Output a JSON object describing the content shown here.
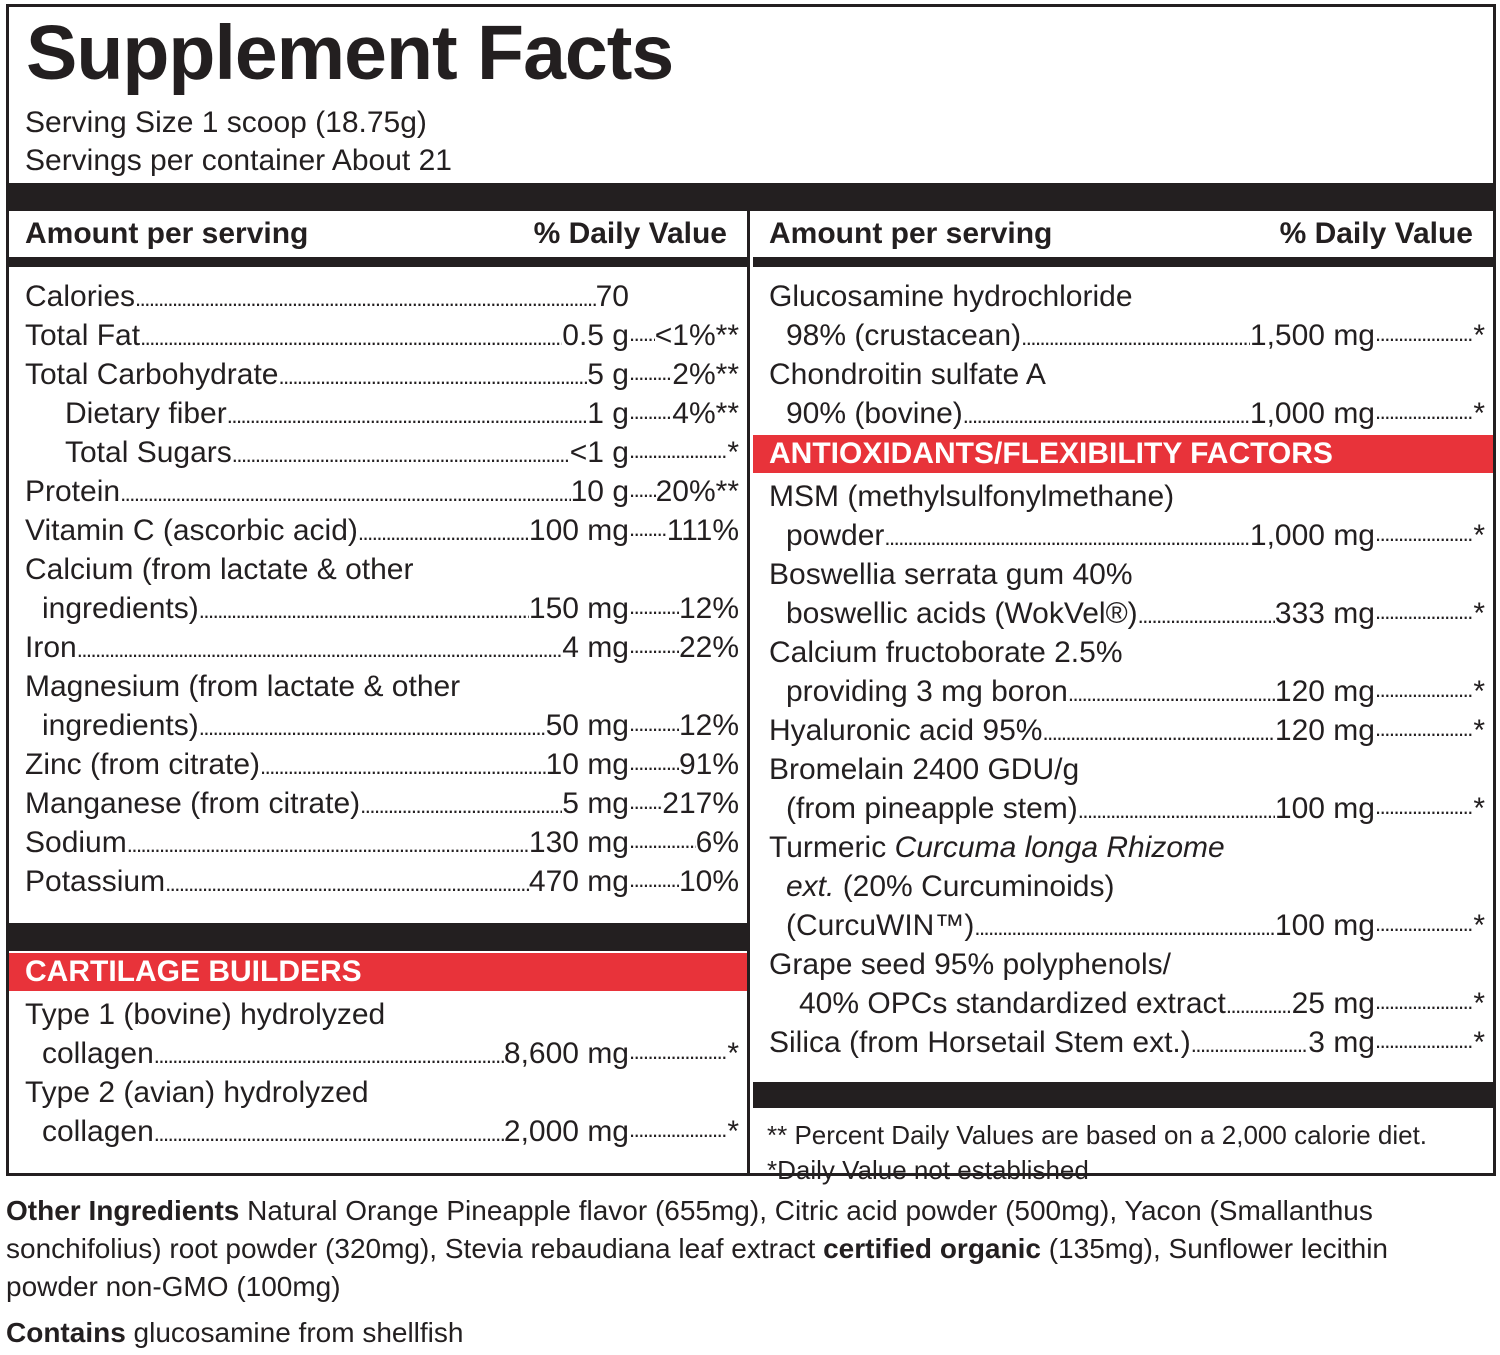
{
  "title": "Supplement Facts",
  "serving_size": "Serving Size 1 scoop (18.75g)",
  "servings_per_container": "Servings per container About 21",
  "header": {
    "amount": "Amount per serving",
    "dv": "% Daily Value"
  },
  "left_rows": [
    {
      "lines": [
        "Calories"
      ],
      "amount": "70",
      "dv": ""
    },
    {
      "lines": [
        "Total Fat"
      ],
      "amount": "0.5 g",
      "dv": "<1%**"
    },
    {
      "lines": [
        "Total Carbohydrate"
      ],
      "amount": "5 g",
      "dv": "2%**"
    },
    {
      "lines": [
        "Dietary fiber"
      ],
      "amount": "1 g",
      "dv": "4%**",
      "indent": 2
    },
    {
      "lines": [
        "Total Sugars"
      ],
      "amount": "<1 g",
      "dv": "*",
      "indent": 2
    },
    {
      "lines": [
        "Protein"
      ],
      "amount": "10 g",
      "dv": "20%**"
    },
    {
      "lines": [
        "Vitamin C (ascorbic acid)"
      ],
      "amount": "100 mg",
      "dv": "111%"
    },
    {
      "lines": [
        "Calcium (from lactate & other",
        "ingredients)"
      ],
      "amount": "150 mg",
      "dv": "12%"
    },
    {
      "lines": [
        "Iron"
      ],
      "amount": "4 mg",
      "dv": "22%"
    },
    {
      "lines": [
        "Magnesium (from lactate & other",
        "ingredients)"
      ],
      "amount": "50 mg",
      "dv": "12%"
    },
    {
      "lines": [
        "Zinc (from citrate)"
      ],
      "amount": "10 mg",
      "dv": "91%"
    },
    {
      "lines": [
        "Manganese (from citrate)"
      ],
      "amount": "5 mg",
      "dv": "217%"
    },
    {
      "lines": [
        "Sodium"
      ],
      "amount": "130 mg",
      "dv": "6%"
    },
    {
      "lines": [
        "Potassium"
      ],
      "amount": "470 mg",
      "dv": "10%"
    }
  ],
  "cartilage": {
    "title": "CARTILAGE BUILDERS",
    "rows": [
      {
        "lines": [
          "Type 1 (bovine) hydrolyzed",
          "collagen"
        ],
        "amount": "8,600 mg",
        "dv": "*"
      },
      {
        "lines": [
          "Type 2 (avian) hydrolyzed",
          "collagen"
        ],
        "amount": "2,000 mg",
        "dv": "*"
      }
    ]
  },
  "right_rows": [
    {
      "lines": [
        "Glucosamine hydrochloride",
        "98% (crustacean)"
      ],
      "amount": "1,500 mg",
      "dv": "*"
    },
    {
      "lines": [
        "Chondroitin sulfate A",
        "90% (bovine)"
      ],
      "amount": "1,000 mg",
      "dv": "*"
    }
  ],
  "antioxidants": {
    "title": "ANTIOXIDANTS/FLEXIBILITY FACTORS",
    "rows": [
      {
        "lines": [
          "MSM (methylsulfonylmethane)",
          "powder"
        ],
        "amount": "1,000 mg",
        "dv": "*"
      },
      {
        "lines": [
          "Boswellia serrata gum 40%",
          "boswellic acids (WokVel®)"
        ],
        "amount": "333 mg",
        "dv": "*"
      },
      {
        "lines": [
          "Calcium fructoborate 2.5%",
          "providing 3 mg boron"
        ],
        "amount": "120 mg",
        "dv": "*"
      },
      {
        "lines": [
          "Hyaluronic acid 95%"
        ],
        "amount": "120 mg",
        "dv": "*"
      },
      {
        "lines": [
          "Bromelain 2400 GDU/g",
          "(from pineapple stem)"
        ],
        "amount": "100 mg",
        "dv": "*"
      },
      {
        "lines": [
          [
            {
              "t": "Turmeric "
            },
            {
              "t": "Curcuma longa Rhizome",
              "i": true
            }
          ],
          [
            {
              "t": "ext.",
              "i": true
            },
            {
              "t": " (20% Curcuminoids)"
            }
          ],
          "(CurcuWIN™)"
        ],
        "amount": "100 mg",
        "dv": "*"
      },
      {
        "lines": [
          "Grape seed 95% polyphenols/",
          "40% OPCs standardized extract"
        ],
        "amount": "25 mg",
        "dv": "*",
        "cont_indent": 2
      },
      {
        "lines": [
          "Silica (from Horsetail Stem ext.)"
        ],
        "amount": "3 mg",
        "dv": "*"
      }
    ]
  },
  "footnotes": [
    "** Percent Daily Values are based on a 2,000 calorie diet.",
    "*Daily Value not established"
  ],
  "other_ingredients": {
    "label": "Other Ingredients",
    "text1": " Natural Orange Pineapple flavor (655mg), Citric acid powder (500mg), Yacon (Smallanthus sonchifolius) root powder (320mg), Stevia rebaudiana leaf extract ",
    "bold2": "certified organic",
    "text2": " (135mg), Sunflower lecithin powder non-GMO (100mg)"
  },
  "contains": {
    "label": "Contains",
    "text": " glucosamine from shellfish"
  },
  "colors": {
    "red": "#e8333a",
    "black": "#231f20"
  }
}
